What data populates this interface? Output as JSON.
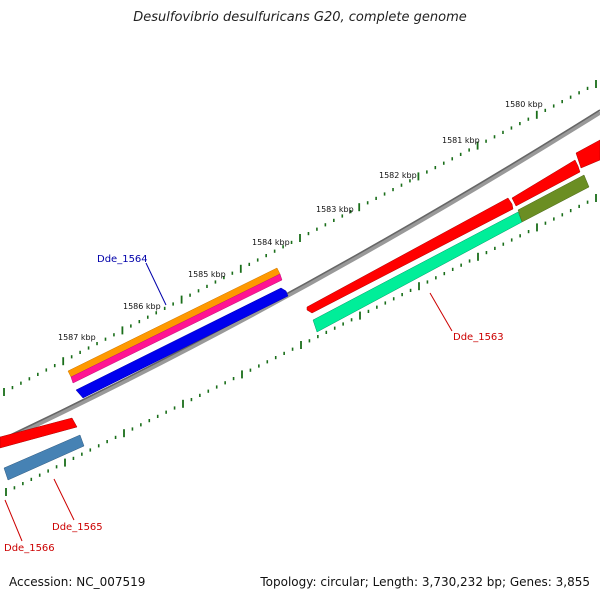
{
  "title": "Desulfovibrio desulfuricans G20, complete genome",
  "footer": {
    "accession": "Accession: NC_007519",
    "summary": "Topology: circular; Length: 3,730,232 bp; Genes: 3,855"
  },
  "ticks": [
    {
      "label": "1580 kbp"
    },
    {
      "label": "1581 kbp"
    },
    {
      "label": "1582 kbp"
    },
    {
      "label": "1583 kbp"
    },
    {
      "label": "1584 kbp"
    },
    {
      "label": "1585 kbp"
    },
    {
      "label": "1586 kbp"
    },
    {
      "label": "1587 kbp"
    }
  ],
  "gene_labels": [
    {
      "name": "Dde_1564",
      "color": "#0000aa"
    },
    {
      "name": "Dde_1563",
      "color": "#cc0000"
    },
    {
      "name": "Dde_1565",
      "color": "#cc0000"
    },
    {
      "name": "Dde_1566",
      "color": "#cc0000"
    }
  ],
  "colors": {
    "backbone": "#888888",
    "tick": "#1a6e1a",
    "cds_red": "#ff0000",
    "orange": "#ff9900",
    "magenta": "#ff1493",
    "blue": "#0000ee",
    "teal": "#00ee99",
    "olive": "#6b8e23",
    "steelblue": "#4682b4"
  }
}
